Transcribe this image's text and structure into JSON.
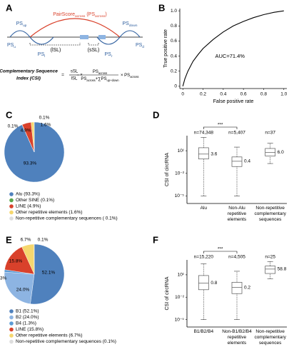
{
  "diagram": {
    "panel": "A",
    "labels": {
      "pair_score": [
        "PairScore",
        "across",
        " (PS",
        "across",
        ")"
      ],
      "ps_up": [
        "PS",
        "up"
      ],
      "ps_down": [
        "PS",
        "down"
      ],
      "ps_u": [
        "PS",
        "u"
      ],
      "ps_l": [
        "PS",
        "l"
      ],
      "ps_r": [
        "PS",
        "r"
      ],
      "ps_d": [
        "PS",
        "d"
      ],
      "lsl": [
        "(lSL)"
      ],
      "ssl": [
        "(sSL)"
      ]
    },
    "formula": {
      "title": [
        "Complementary Sequence",
        "Index (CSI)"
      ],
      "equals": "=",
      "num1": "sSL",
      "den1": "lSL",
      "times": "×",
      "num2": [
        "PS",
        "across"
      ],
      "den2": [
        "PS",
        "across",
        "+∑PS",
        "up+down"
      ],
      "tail": [
        "× PS",
        "across"
      ]
    }
  },
  "chart_data": [
    {
      "panel": "B",
      "type": "line",
      "color": "#000000",
      "xlabel": "False positive rate",
      "ylabel": "True positive rate",
      "annotation": "AUC=71.4%",
      "x": [
        0,
        0.02,
        0.05,
        0.1,
        0.15,
        0.2,
        0.3,
        0.4,
        0.5,
        0.6,
        0.7,
        0.8,
        0.9,
        1
      ],
      "values": [
        0,
        0.1,
        0.2,
        0.33,
        0.42,
        0.5,
        0.62,
        0.72,
        0.8,
        0.86,
        0.91,
        0.95,
        0.98,
        1
      ],
      "xlim": [
        -0.03,
        1.03
      ],
      "ylim": [
        -0.03,
        1.03
      ],
      "xticks": [
        0,
        0.2,
        0.4,
        0.6,
        0.8,
        {
          "value": 1,
          "label": "1.0"
        }
      ],
      "yticks": [
        0,
        0.2,
        0.4,
        0.6,
        0.8,
        {
          "value": 1,
          "label": "1.0"
        }
      ]
    },
    {
      "panel": "C",
      "type": "pie",
      "categories": [
        "Alu (93.3%)",
        "Other SINE (0.1%)",
        "LINE (4.9%)",
        "Other repetitive elements (1.6%)",
        "Non-repetitive complementary sequences ( 0.1%)"
      ],
      "values": [
        93.3,
        0.1,
        4.9,
        1.6,
        0.1
      ],
      "value_labels": [
        "93.3%",
        "0.1%",
        "4.9%",
        "1.6%",
        "0.1%"
      ],
      "colors": [
        "#4f81bd",
        "#5aa64a",
        "#d9412b",
        "#f5d76e",
        "#dddddd"
      ]
    },
    {
      "panel": "D",
      "type": "box",
      "ylabel": "CSI of circRNA",
      "log_scale": true,
      "significance": "***",
      "categories": [
        "Alu",
        "Non-Alu repetitive elements",
        "Non-repetitive complementary sequences"
      ],
      "n_labels": [
        "n=74,348",
        "n=5,407",
        "n=37"
      ],
      "whisker_low": [
        1e-05,
        1e-05,
        0.2
      ],
      "q1": [
        0.8,
        0.08,
        2
      ],
      "medians": [
        3.6,
        0.4,
        6.0
      ],
      "q3": [
        25,
        1.5,
        20
      ],
      "whisker_high": [
        600,
        30,
        100
      ],
      "value_labels": [
        "3.6",
        "0.4",
        "6.0"
      ],
      "ylim": [
        1e-06,
        1000
      ],
      "yticks": [
        {
          "value": 10,
          "label": "10¹"
        },
        {
          "value": 0.01,
          "label": "10⁻²"
        },
        {
          "value": 1e-05,
          "label": "10⁻⁵"
        }
      ]
    },
    {
      "panel": "E",
      "type": "pie",
      "categories": [
        "B1 (52.1%)",
        "B2 (24.0%)",
        "B4 (1.3%)",
        "LINE (15.8%)",
        "Other repetitive elements (6.7%)",
        "Non-repetitive complementary sequences (0.1%)"
      ],
      "values": [
        52.1,
        24.0,
        1.3,
        15.8,
        6.7,
        0.1
      ],
      "value_labels": [
        "52.1%",
        "24.0%",
        "1.3%",
        "15.8%",
        "6.7%",
        "0.1%"
      ],
      "colors": [
        "#4f81bd",
        "#8db4e2",
        "#5b9bd5",
        "#d9412b",
        "#f5d76e",
        "#dddddd"
      ]
    },
    {
      "panel": "F",
      "type": "box",
      "ylabel": "CSI of circRNA",
      "log_scale": true,
      "significance": "***",
      "categories": [
        "B1/B2/B4",
        "Non-B1/B2/B4 repetitive elements",
        "Non-repetitive complementary sequences"
      ],
      "n_labels": [
        "n=15,220",
        "n=4,505",
        "n=25"
      ],
      "whisker_low": [
        1e-05,
        1e-05,
        3
      ],
      "q1": [
        0.1,
        0.03,
        15
      ],
      "medians": [
        0.8,
        0.2,
        58.8
      ],
      "q3": [
        8,
        1,
        150
      ],
      "whisker_high": [
        300,
        30,
        600
      ],
      "value_labels": [
        "0.8",
        "0.2",
        "58.8"
      ],
      "ylim": [
        1e-06,
        1000
      ],
      "yticks": [
        {
          "value": 10,
          "label": "10¹"
        },
        {
          "value": 0.01,
          "label": "10⁻²"
        },
        {
          "value": 1e-05,
          "label": "10⁻⁵"
        }
      ]
    }
  ]
}
